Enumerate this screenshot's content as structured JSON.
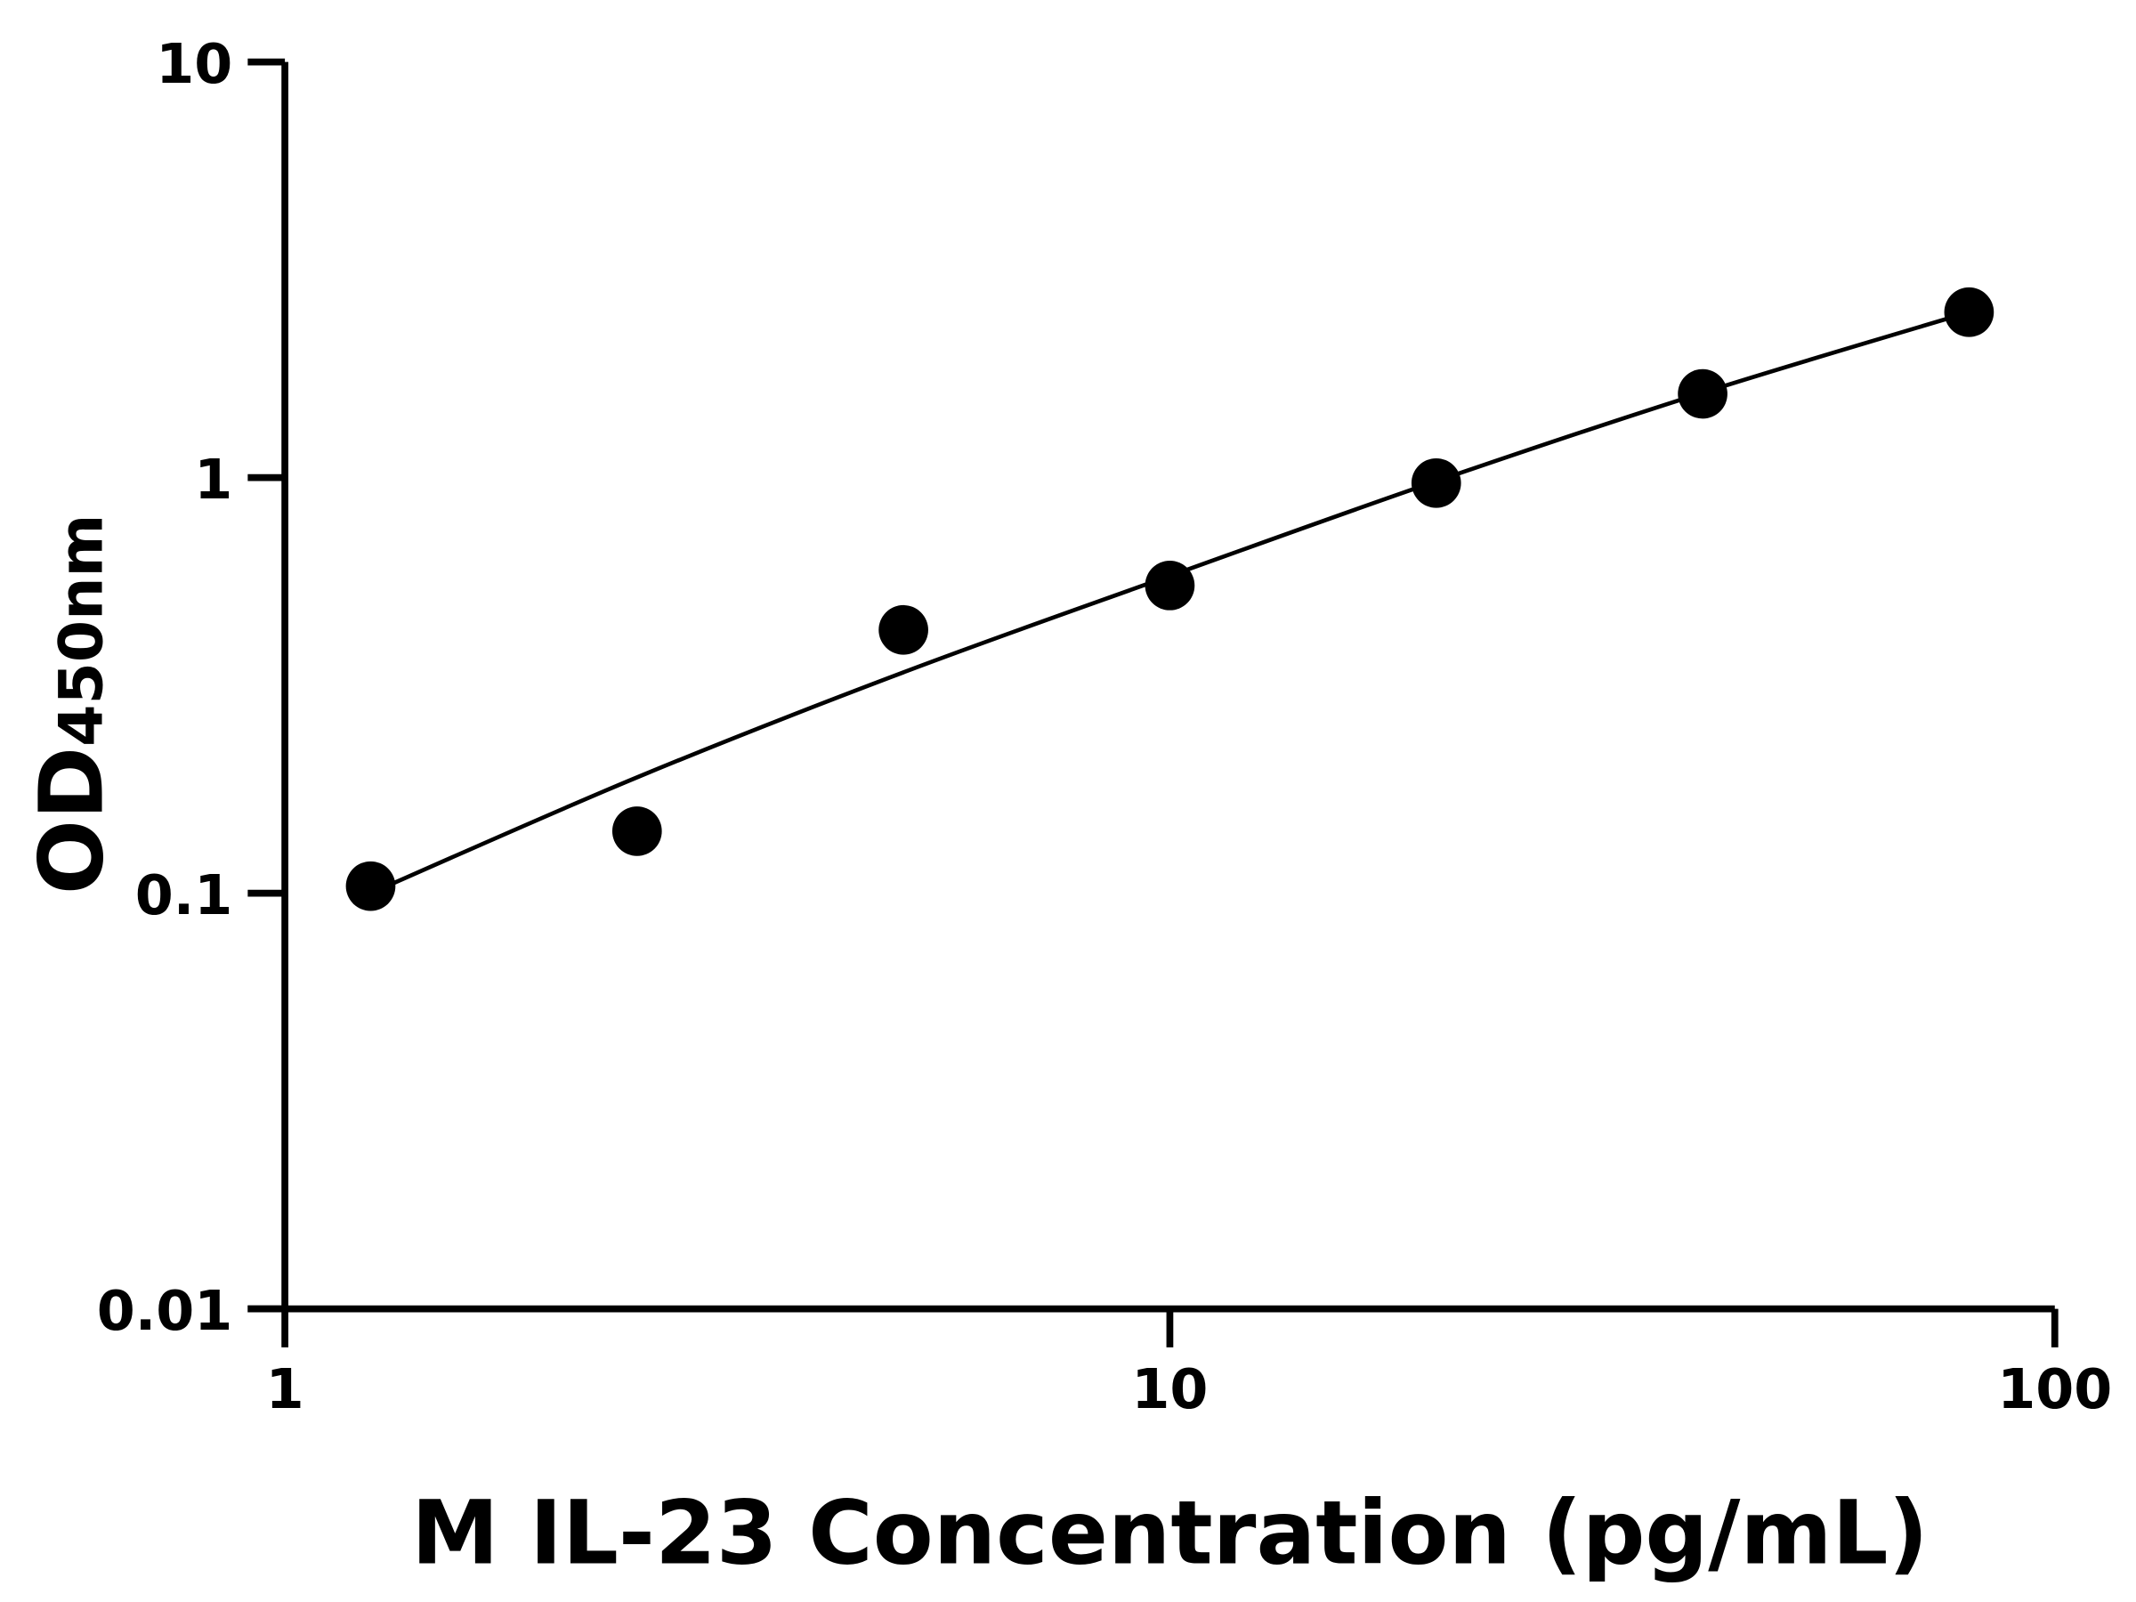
{
  "chart_data": {
    "type": "scatter",
    "title": "",
    "xlabel": "M IL-23 Concentration (pg/mL)",
    "ylabel_main": "OD",
    "ylabel_sub": "450nm",
    "x_scale": "log",
    "y_scale": "log",
    "xlim": [
      1,
      100
    ],
    "ylim": [
      0.01,
      10
    ],
    "x_ticks": [
      "1",
      "10",
      "100"
    ],
    "y_ticks": [
      "0.01",
      "0.1",
      "1",
      "10"
    ],
    "grid": false,
    "legend": "none",
    "marker_color": "#000000",
    "points": {
      "x": [
        1.25,
        2.5,
        5,
        10,
        20,
        40,
        80
      ],
      "y": [
        0.104,
        0.141,
        0.43,
        0.55,
        0.97,
        1.59,
        2.5
      ]
    },
    "fit_curve": {
      "x": [
        1.25,
        2.5,
        5,
        10,
        20,
        40,
        80
      ],
      "y": [
        0.1,
        0.19,
        0.34,
        0.58,
        0.98,
        1.6,
        2.5
      ]
    }
  }
}
